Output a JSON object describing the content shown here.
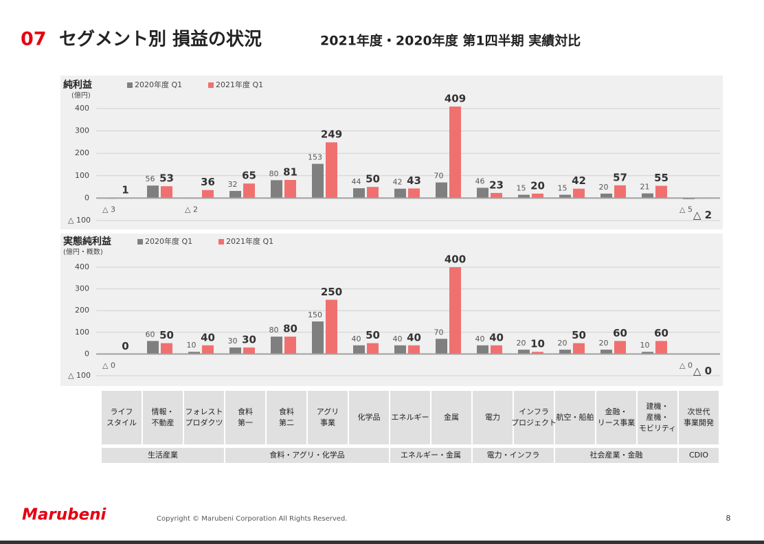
{
  "header": {
    "number": "07",
    "title": "セグメント別 損益の状況",
    "subtitle": "2021年度・2020年度 第1四半期 実績対比"
  },
  "chart_data": [
    {
      "type": "bar",
      "title": "純利益",
      "unit": "(億円)",
      "ylim": [
        -100,
        420
      ],
      "yticks": [
        {
          "value": -100,
          "label": "△ 100"
        },
        0,
        100,
        200,
        300,
        400
      ],
      "grid": true,
      "series": [
        {
          "name": "2020年度 Q1",
          "color": "#7f7f7f",
          "values": [
            -3,
            56,
            -2,
            32,
            80,
            153,
            44,
            42,
            70,
            46,
            15,
            15,
            20,
            21,
            -5
          ],
          "value_labels": [
            "△ 3",
            "56",
            "△ 2",
            "32",
            "80",
            "153",
            "44",
            "42",
            "70",
            "46",
            "15",
            "15",
            "20",
            "21",
            "△ 5"
          ]
        },
        {
          "name": "2021年度 Q1",
          "color": "#f07070",
          "values": [
            1,
            53,
            36,
            65,
            81,
            249,
            50,
            43,
            409,
            23,
            20,
            42,
            57,
            55,
            -2
          ],
          "value_labels": [
            "1",
            "53",
            "36",
            "65",
            "81",
            "249",
            "50",
            "43",
            "409",
            "23",
            "20",
            "42",
            "57",
            "55",
            "△ 2"
          ]
        }
      ]
    },
    {
      "type": "bar",
      "title": "実態純利益",
      "unit": "(億円・概数)",
      "ylim": [
        -100,
        420
      ],
      "yticks": [
        {
          "value": -100,
          "label": "△ 100"
        },
        0,
        100,
        200,
        300,
        400
      ],
      "grid": true,
      "series": [
        {
          "name": "2020年度 Q1",
          "color": "#7f7f7f",
          "values": [
            0,
            60,
            10,
            30,
            80,
            150,
            40,
            40,
            70,
            40,
            20,
            20,
            20,
            10,
            0
          ],
          "value_labels": [
            "△ 0",
            "60",
            "10",
            "30",
            "80",
            "150",
            "40",
            "40",
            "70",
            "40",
            "20",
            "20",
            "20",
            "10",
            "△ 0"
          ]
        },
        {
          "name": "2021年度 Q1",
          "color": "#f07070",
          "values": [
            0,
            50,
            40,
            30,
            80,
            250,
            50,
            40,
            400,
            40,
            10,
            50,
            60,
            60,
            0
          ],
          "value_labels": [
            "0",
            "50",
            "40",
            "30",
            "80",
            "250",
            "50",
            "40",
            "400",
            "40",
            "10",
            "50",
            "60",
            "60",
            "△ 0"
          ]
        }
      ]
    }
  ],
  "segments": {
    "groups": [
      {
        "name": "生活産業",
        "members": [
          [
            "ライフ",
            "スタイル"
          ],
          [
            "情報・",
            "不動産"
          ],
          [
            "フォレスト",
            "プロダクツ"
          ]
        ]
      },
      {
        "name": "食料・アグリ・化学品",
        "members": [
          [
            "食料",
            "第一"
          ],
          [
            "食料",
            "第二"
          ],
          [
            "アグリ",
            "事業"
          ],
          [
            "化学品"
          ]
        ]
      },
      {
        "name": "エネルギー・金属",
        "members": [
          [
            "エネルギー"
          ],
          [
            "金属"
          ]
        ]
      },
      {
        "name": "電力・インフラ",
        "members": [
          [
            "電力"
          ],
          [
            "インフラ",
            "プロジェクト"
          ]
        ]
      },
      {
        "name": "社会産業・金融",
        "members": [
          [
            "航空・船舶"
          ],
          [
            "金融・",
            "リース事業"
          ],
          [
            "建機・",
            "産機・",
            "モビリティ"
          ]
        ]
      },
      {
        "name": "CDIO",
        "members": [
          [
            "次世代",
            "事業開発"
          ]
        ]
      }
    ]
  },
  "footer": {
    "logo": "Marubeni",
    "copyright": "Copyright © Marubeni Corporation All Rights Reserved.",
    "page": "8"
  }
}
